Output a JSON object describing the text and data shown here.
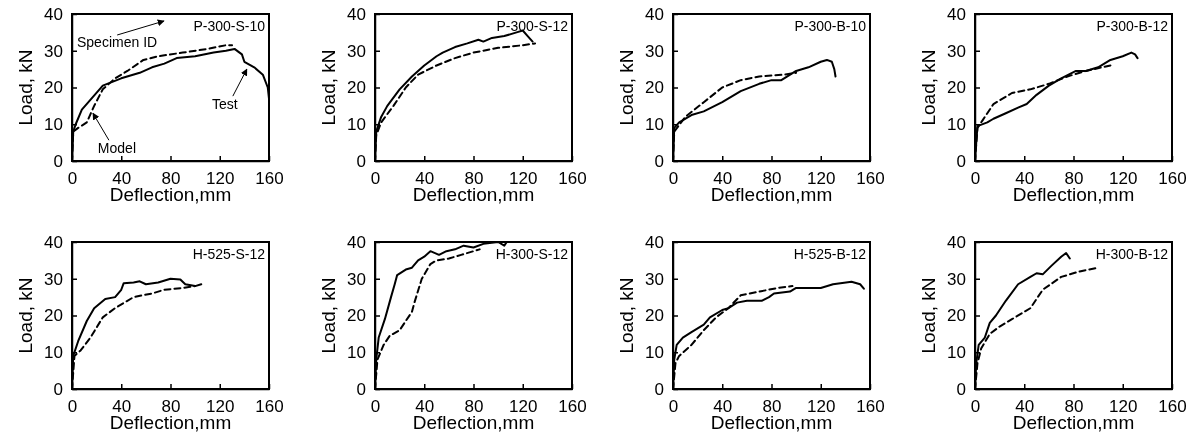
{
  "chart_data": [
    {
      "type": "line",
      "title": "P-300-S-10",
      "xlabel": "Deflection,mm",
      "ylabel": "Load, kN",
      "xlim": [
        0,
        160
      ],
      "xticks": [
        0,
        40,
        80,
        120,
        160
      ],
      "ylim": [
        0,
        40
      ],
      "yticks": [
        0,
        10,
        20,
        30,
        40
      ],
      "annotations": [
        "Specimen ID",
        {
          "text": "Model",
          "x": 17,
          "y": 13
        },
        {
          "text": "Test",
          "x": 142,
          "y": 25
        }
      ],
      "series": [
        {
          "color": "#000000",
          "line_style": "solid",
          "x": [
            0,
            1,
            3,
            8,
            25,
            40,
            55,
            65,
            75,
            85,
            100,
            115,
            125,
            132,
            138,
            140,
            148,
            155,
            159,
            160
          ],
          "values": [
            0,
            8,
            10,
            14,
            20.5,
            22.5,
            24,
            25.5,
            26.5,
            28,
            28.5,
            29.5,
            30,
            30.5,
            29,
            27,
            25.5,
            23.5,
            20,
            17
          ]
        },
        {
          "color": "#000000",
          "line_style": "dashed",
          "x": [
            0,
            1,
            5,
            12,
            18,
            25,
            35,
            45,
            58,
            70,
            90,
            110,
            125,
            130
          ],
          "values": [
            0,
            8,
            9,
            10.5,
            15,
            19.5,
            22.5,
            24.5,
            27.5,
            28.5,
            29.5,
            30.5,
            31.5,
            31.5
          ]
        }
      ]
    },
    {
      "type": "line",
      "title": "P-300-S-12",
      "xlabel": "Deflection,mm",
      "ylabel": "Load, kN",
      "xlim": [
        0,
        160
      ],
      "xticks": [
        0,
        40,
        80,
        120,
        160
      ],
      "ylim": [
        0,
        40
      ],
      "yticks": [
        0,
        10,
        20,
        30,
        40
      ],
      "series": [
        {
          "color": "#000000",
          "line_style": "solid",
          "x": [
            0,
            1,
            5,
            10,
            20,
            30,
            40,
            50,
            55,
            65,
            75,
            84,
            88,
            95,
            105,
            115,
            120,
            124,
            128
          ],
          "values": [
            0,
            8,
            12,
            15,
            19.5,
            23,
            26,
            28.5,
            29.5,
            31,
            32,
            33,
            32.5,
            33.5,
            34,
            35,
            35.5,
            34,
            32.5
          ]
        },
        {
          "color": "#000000",
          "line_style": "dashed",
          "x": [
            0,
            1,
            5,
            15,
            25,
            35,
            50,
            65,
            80,
            100,
            120,
            130
          ],
          "values": [
            0,
            7,
            10.5,
            15,
            20,
            23.5,
            26,
            28,
            29.5,
            30.8,
            31.5,
            32
          ]
        }
      ]
    },
    {
      "type": "line",
      "title": "P-300-B-10",
      "xlabel": "Deflection,mm",
      "ylabel": "Load, kN",
      "xlim": [
        0,
        160
      ],
      "xticks": [
        0,
        40,
        80,
        120,
        160
      ],
      "ylim": [
        0,
        40
      ],
      "yticks": [
        0,
        10,
        20,
        30,
        40
      ],
      "series": [
        {
          "color": "#000000",
          "line_style": "solid",
          "x": [
            0,
            1,
            5,
            15,
            25,
            40,
            55,
            70,
            80,
            88,
            100,
            110,
            120,
            125,
            129,
            131,
            132
          ],
          "values": [
            0,
            9,
            10.5,
            12.5,
            13.5,
            16,
            19,
            21,
            22,
            22,
            24.5,
            25.5,
            27,
            27.5,
            27,
            25,
            23
          ]
        },
        {
          "color": "#000000",
          "line_style": "dashed",
          "x": [
            0,
            1,
            10,
            25,
            40,
            55,
            70,
            90,
            100
          ],
          "values": [
            0,
            8,
            12,
            16,
            20,
            22,
            23,
            23.5,
            24
          ]
        }
      ]
    },
    {
      "type": "line",
      "title": "P-300-B-12",
      "xlabel": "Deflection,mm",
      "ylabel": "Load, kN",
      "xlim": [
        0,
        160
      ],
      "xticks": [
        0,
        40,
        80,
        120,
        160
      ],
      "ylim": [
        0,
        40
      ],
      "yticks": [
        0,
        10,
        20,
        30,
        40
      ],
      "series": [
        {
          "color": "#000000",
          "line_style": "solid",
          "x": [
            0,
            1,
            2,
            10,
            15,
            25,
            35,
            42,
            50,
            60,
            70,
            82,
            90,
            100,
            110,
            120,
            127,
            130,
            132
          ],
          "values": [
            0,
            5,
            9.5,
            10.5,
            11.5,
            13,
            14.5,
            15.5,
            18,
            20.5,
            22.5,
            24.5,
            24.5,
            25.5,
            27.5,
            28.5,
            29.5,
            29,
            28
          ]
        },
        {
          "color": "#000000",
          "line_style": "dashed",
          "x": [
            0,
            2,
            6,
            15,
            30,
            45,
            60,
            75,
            90,
            110
          ],
          "values": [
            0,
            9,
            11,
            15.5,
            18.5,
            19.5,
            21,
            23,
            24.5,
            26
          ]
        }
      ]
    },
    {
      "type": "line",
      "title": "H-525-S-12",
      "xlabel": "Deflection,mm",
      "ylabel": "Load, kN",
      "xlim": [
        0,
        160
      ],
      "xticks": [
        0,
        40,
        80,
        120,
        160
      ],
      "ylim": [
        0,
        40
      ],
      "yticks": [
        0,
        10,
        20,
        30,
        40
      ],
      "series": [
        {
          "color": "#000000",
          "line_style": "solid",
          "x": [
            0,
            1,
            5,
            12,
            18,
            27,
            35,
            40,
            42,
            50,
            55,
            60,
            70,
            80,
            88,
            92,
            100,
            105
          ],
          "values": [
            0,
            9,
            13,
            18.5,
            22,
            24.5,
            25,
            27,
            28.8,
            29,
            29.3,
            28.5,
            29,
            30,
            29.8,
            28.5,
            28,
            28.5
          ]
        },
        {
          "color": "#000000",
          "line_style": "dashed",
          "x": [
            0,
            2,
            7,
            15,
            25,
            35,
            50,
            65,
            75,
            90,
            100
          ],
          "values": [
            0,
            9,
            10.5,
            14,
            19.5,
            22,
            25,
            26,
            27,
            27.5,
            28
          ]
        }
      ]
    },
    {
      "type": "line",
      "title": "H-300-S-12",
      "xlabel": "Deflection,mm",
      "ylabel": "Load, kN",
      "xlim": [
        0,
        160
      ],
      "xticks": [
        0,
        40,
        80,
        120,
        160
      ],
      "ylim": [
        0,
        40
      ],
      "yticks": [
        0,
        10,
        20,
        30,
        40
      ],
      "series": [
        {
          "color": "#000000",
          "line_style": "solid",
          "x": [
            0,
            1,
            3,
            8,
            13,
            16,
            18,
            25,
            30,
            35,
            40,
            45,
            52,
            58,
            65,
            72,
            80,
            88,
            100,
            105,
            107
          ],
          "values": [
            0,
            8,
            14,
            19,
            25,
            28.5,
            31,
            32.5,
            33,
            35,
            36,
            37.5,
            36.5,
            37.5,
            38,
            39,
            38.5,
            39.5,
            40,
            39,
            40
          ]
        },
        {
          "color": "#000000",
          "line_style": "dashed",
          "x": [
            0,
            2,
            7,
            12,
            20,
            25,
            30,
            32,
            38,
            45,
            50,
            60,
            70,
            80,
            85
          ],
          "values": [
            0,
            8,
            12,
            14.5,
            16,
            18.5,
            21,
            23.5,
            30,
            34,
            35,
            35.5,
            36.5,
            37.5,
            38
          ]
        }
      ]
    },
    {
      "type": "line",
      "title": "H-525-B-12",
      "xlabel": "Deflection,mm",
      "ylabel": "Load, kN",
      "xlim": [
        0,
        160
      ],
      "xticks": [
        0,
        40,
        80,
        120,
        160
      ],
      "ylim": [
        0,
        40
      ],
      "yticks": [
        0,
        10,
        20,
        30,
        40
      ],
      "series": [
        {
          "color": "#000000",
          "line_style": "solid",
          "x": [
            0,
            1,
            3,
            8,
            15,
            25,
            30,
            40,
            45,
            52,
            60,
            72,
            78,
            82,
            95,
            100,
            110,
            120,
            130,
            145,
            152,
            155
          ],
          "values": [
            0,
            8,
            12,
            14,
            15.5,
            17.5,
            19.5,
            21.5,
            22,
            23.5,
            24,
            24,
            25,
            26,
            26.5,
            27.5,
            27.5,
            27.5,
            28.5,
            29.2,
            28.5,
            27.3
          ]
        },
        {
          "color": "#000000",
          "line_style": "dashed",
          "x": [
            0,
            2,
            5,
            15,
            25,
            35,
            45,
            55,
            70,
            85,
            97
          ],
          "values": [
            0,
            7,
            9,
            12,
            16,
            19.5,
            22,
            25.5,
            26.5,
            27.5,
            28
          ]
        }
      ]
    },
    {
      "type": "line",
      "title": "H-300-B-12",
      "xlabel": "Deflection,mm",
      "ylabel": "Load, kN",
      "xlim": [
        0,
        160
      ],
      "xticks": [
        0,
        40,
        80,
        120,
        160
      ],
      "ylim": [
        0,
        40
      ],
      "yticks": [
        0,
        10,
        20,
        30,
        40
      ],
      "series": [
        {
          "color": "#000000",
          "line_style": "solid",
          "x": [
            0,
            1,
            3,
            8,
            12,
            17,
            25,
            35,
            45,
            50,
            55,
            62,
            70,
            74,
            77
          ],
          "values": [
            0,
            7,
            12,
            14,
            18,
            20,
            24,
            28.5,
            30.5,
            31.5,
            31.2,
            33.5,
            36,
            37,
            35.5
          ]
        },
        {
          "color": "#000000",
          "line_style": "dashed",
          "x": [
            0,
            2,
            5,
            12,
            20,
            30,
            40,
            45,
            50,
            55,
            70,
            85,
            100
          ],
          "values": [
            0,
            7,
            11,
            15,
            17,
            19,
            21,
            22,
            24.5,
            27,
            30.5,
            32,
            33
          ]
        }
      ]
    }
  ]
}
